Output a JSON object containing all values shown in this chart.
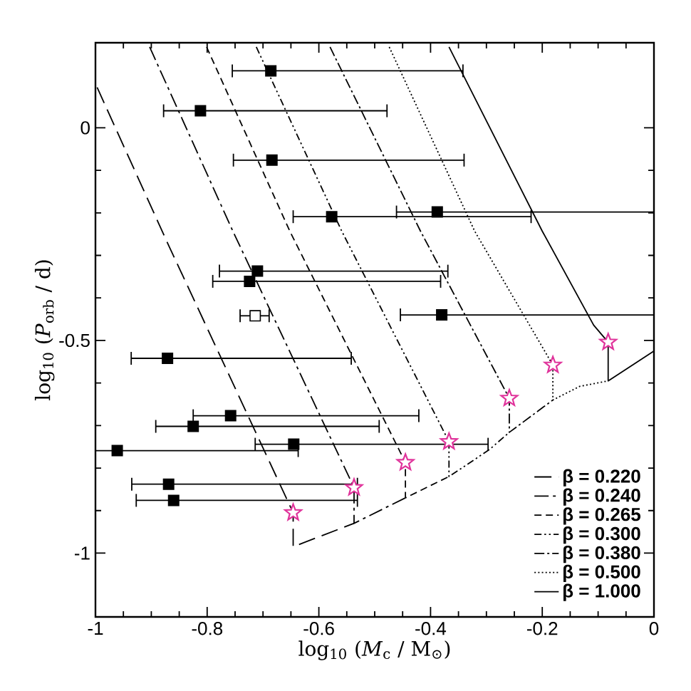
{
  "chart_data": {
    "type": "line",
    "xlabel": "log$_{10}$ (*M*$_{c}$ / M$_{⊙}$)",
    "ylabel": "log$_{10}$ (*P*$_{orb}$ / d)",
    "xlim": [
      -1,
      0
    ],
    "ylim": [
      -1.15,
      0.2
    ],
    "xticks": [
      -1,
      -0.8,
      -0.6,
      -0.4,
      -0.2,
      0
    ],
    "yticks": [
      -1,
      -0.5,
      0
    ],
    "grid": false,
    "legend": "bottom right",
    "series": [
      {
        "name": "β = 0.220",
        "color": "#000000",
        "line_style": "longdashed",
        "marker": "none",
        "x": [
          -0.997,
          -0.873,
          -0.646,
          -0.646,
          -0.537
        ],
        "values": [
          0.095,
          -0.265,
          -0.905,
          -0.985,
          -0.93
        ]
      },
      {
        "name": "β = 0.240",
        "color": "#000000",
        "line_style": "longdashdotted",
        "marker": "none",
        "x": [
          -0.903,
          -0.754,
          -0.537,
          -0.537,
          -0.445
        ],
        "values": [
          0.19,
          -0.243,
          -0.846,
          -0.93,
          -0.87
        ]
      },
      {
        "name": "β = 0.265",
        "color": "#000000",
        "line_style": "dashed",
        "marker": "none",
        "x": [
          -0.801,
          -0.652,
          -0.445,
          -0.445,
          -0.367
        ],
        "values": [
          0.19,
          -0.243,
          -0.787,
          -0.87,
          -0.82
        ]
      },
      {
        "name": "β = 0.300",
        "color": "#000000",
        "line_style": "dashdotdotted",
        "marker": "none",
        "x": [
          -0.712,
          -0.559,
          -0.367,
          -0.367,
          -0.295,
          -0.259
        ],
        "values": [
          0.19,
          -0.243,
          -0.738,
          -0.82,
          -0.757,
          -0.716
        ]
      },
      {
        "name": "β = 0.380",
        "color": "#000000",
        "line_style": "dashdotted",
        "marker": "none",
        "x": [
          -0.58,
          -0.418,
          -0.259,
          -0.259,
          -0.181
        ],
        "values": [
          0.19,
          -0.243,
          -0.636,
          -0.716,
          -0.64
        ]
      },
      {
        "name": "β = 0.500",
        "color": "#000000",
        "line_style": "dotted",
        "marker": "none",
        "x": [
          -0.474,
          -0.321,
          -0.181,
          -0.181,
          -0.133,
          -0.082
        ],
        "values": [
          0.19,
          -0.243,
          -0.558,
          -0.64,
          -0.608,
          -0.595
        ]
      },
      {
        "name": "β = 1.000",
        "color": "#000000",
        "line_style": "solid",
        "marker": "none",
        "x": [
          -0.367,
          -0.2,
          -0.108,
          -0.082,
          -0.082,
          0
        ],
        "values": [
          0.19,
          -0.243,
          -0.464,
          -0.504,
          -0.595,
          -0.525
        ]
      },
      {
        "type": "scatter",
        "color": "#000000",
        "marker": "square",
        "x": [
          -0.686,
          -0.812,
          -0.684,
          -0.577,
          -0.388,
          -0.71,
          -0.724,
          -0.38,
          -0.871,
          -0.758,
          -0.825,
          -0.961,
          -0.645,
          -0.869,
          -0.86
        ],
        "values": [
          0.134,
          0.04,
          -0.076,
          -0.209,
          -0.198,
          -0.337,
          -0.361,
          -0.44,
          -0.542,
          -0.677,
          -0.702,
          -0.759,
          -0.744,
          -0.838,
          -0.876
        ],
        "xerrors": [
          [
            -0.755,
            -0.342
          ],
          [
            -0.878,
            -0.478
          ],
          [
            -0.753,
            -0.34
          ],
          [
            -0.646,
            -0.22
          ],
          [
            -0.461,
            0
          ],
          [
            -0.778,
            -0.369
          ],
          [
            -0.79,
            -0.382
          ],
          [
            -0.454,
            0
          ],
          [
            -0.936,
            -0.542
          ],
          [
            -0.825,
            -0.421
          ],
          [
            -0.892,
            -0.492
          ],
          [
            -1,
            -0.637
          ],
          [
            -0.714,
            -0.297
          ],
          [
            -0.935,
            -0.531
          ],
          [
            -0.927,
            -0.531
          ]
        ]
      },
      {
        "type": "scatter",
        "color": "#ffffff",
        "marker": "square",
        "x": [
          -0.714
        ],
        "values": [
          -0.442
        ],
        "xerrors": [
          [
            -0.741,
            -0.689
          ]
        ]
      },
      {
        "type": "scatter",
        "color": "#e0339b",
        "marker": "star",
        "x": [
          -0.646,
          -0.537,
          -0.445,
          -0.367,
          -0.259,
          -0.181,
          -0.082
        ],
        "values": [
          -0.905,
          -0.846,
          -0.787,
          -0.738,
          -0.636,
          -0.558,
          -0.504
        ]
      }
    ]
  }
}
